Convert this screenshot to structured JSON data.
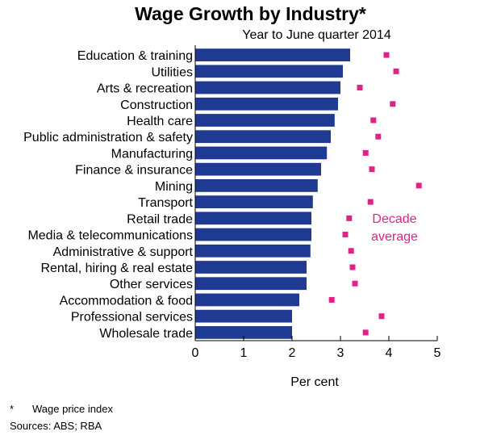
{
  "chart_data": {
    "type": "bar",
    "orientation": "horizontal",
    "title": "Wage Growth by Industry*",
    "subtitle": "Year to June quarter 2014",
    "xlabel": "Per cent",
    "xlim": [
      0,
      5
    ],
    "xticks": [
      "0",
      "1",
      "2",
      "3",
      "4",
      "5"
    ],
    "grid": false,
    "categories": [
      "Education & training",
      "Utilities",
      "Arts & recreation",
      "Construction",
      "Health care",
      "Public administration & safety",
      "Manufacturing",
      "Finance & insurance",
      "Mining",
      "Transport",
      "Retail trade",
      "Media & telecommunications",
      "Administrative & support",
      "Rental, hiring & real estate",
      "Other services",
      "Accommodation & food",
      "Professional services",
      "Wholesale trade"
    ],
    "values": [
      3.2,
      3.05,
      3.0,
      2.95,
      2.88,
      2.8,
      2.72,
      2.6,
      2.53,
      2.43,
      2.4,
      2.4,
      2.38,
      2.3,
      2.3,
      2.15,
      2.0,
      2.0
    ],
    "decade_average": [
      3.95,
      4.15,
      3.4,
      4.08,
      3.68,
      3.78,
      3.52,
      3.65,
      4.62,
      3.62,
      3.18,
      3.1,
      3.22,
      3.25,
      3.3,
      2.82,
      3.85,
      3.52
    ],
    "annotation_lines": [
      "Decade",
      "average"
    ],
    "colors": {
      "bar": "#1f3a93",
      "marker": "#e0218a"
    }
  },
  "footnotes": {
    "star": "*",
    "text": "Wage price index",
    "sources": "Sources:  ABS; RBA"
  }
}
